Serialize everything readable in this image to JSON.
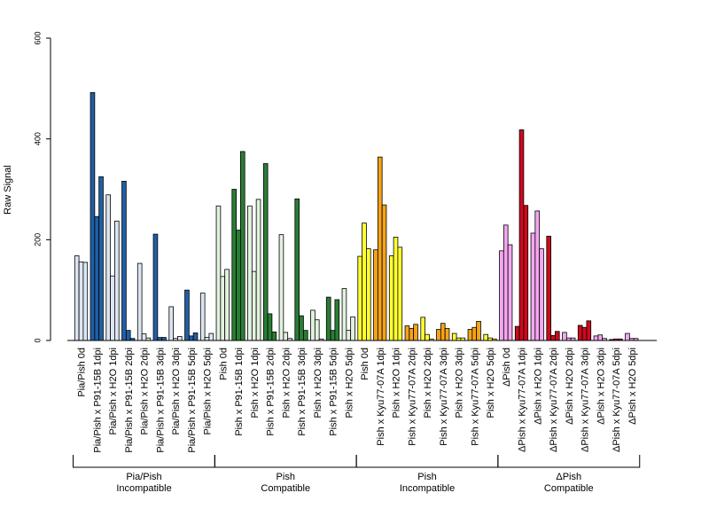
{
  "chart_data": {
    "type": "bar",
    "ylabel": "Raw Signal",
    "ylim": [
      0,
      600
    ],
    "yticks": [
      0,
      200,
      400,
      600
    ],
    "categories": [
      "Pia/Pish 0d",
      "Pia/Pish x P91-15B 1dpi",
      "Pia/Pish x H2O 1dpi",
      "Pia/Pish x P91-15B 2dpi",
      "Pia/Pish x H2O 2dpi",
      "Pia/Pish x P91-15B 3dpi",
      "Pia/Pish x H2O 3dpi",
      "Pia/Pish x P91-15B 5dpi",
      "Pia/Pish x H2O 5dpi",
      "Pish 0d",
      "Pish x P91-15B 1dpi",
      "Pish x H2O 1dpi",
      "Pish x P91-15B 2dpi",
      "Pish x H2O 2dpi",
      "Pish x P91-15B 3dpi",
      "Pish x H2O 3dpi",
      "Pish x P91-15B 5dpi",
      "Pish x H2O 5dpi",
      "Pish 0d",
      "Pish x Kyu77-07A 1dpi",
      "Pish x H2O 1dpi",
      "Pish x Kyu77-07A 2dpi",
      "Pish x H2O 2dpi",
      "Pish x Kyu77-07A 3dpi",
      "Pish x H2O 3dpi",
      "Pish x Kyu77-07A 5dpi",
      "Pish x H2O 5dpi",
      "ΔPish 0d",
      "ΔPish x Kyu77-07A 1dpi",
      "ΔPish x H2O 1dpi",
      "ΔPish x Kyu77-07A 2dpi",
      "ΔPish x H2O 2dpi",
      "ΔPish x Kyu77-07A 3dpi",
      "ΔPish x H2O 3dpi",
      "ΔPish x Kyu77-07A 5dpi",
      "ΔPish x H2O 5dpi"
    ],
    "replicate_values": [
      [
        168,
        156,
        155
      ],
      [
        492,
        246,
        325
      ],
      [
        289,
        128,
        237
      ],
      [
        316,
        20,
        4
      ],
      [
        153,
        13,
        5
      ],
      [
        211,
        6,
        6
      ],
      [
        67,
        4,
        8
      ],
      [
        100,
        9,
        15
      ],
      [
        94,
        6,
        14
      ],
      [
        267,
        127,
        141
      ],
      [
        300,
        219,
        375
      ],
      [
        267,
        137,
        280
      ],
      [
        351,
        53,
        17
      ],
      [
        210,
        16,
        4
      ],
      [
        281,
        49,
        20
      ],
      [
        60,
        41,
        3
      ],
      [
        86,
        20,
        81
      ],
      [
        103,
        20,
        47
      ],
      [
        167,
        233,
        182
      ],
      [
        180,
        364,
        269
      ],
      [
        168,
        205,
        185
      ],
      [
        29,
        24,
        32
      ],
      [
        46,
        12,
        3
      ],
      [
        22,
        34,
        24
      ],
      [
        14,
        5,
        5
      ],
      [
        22,
        26,
        38
      ],
      [
        12,
        5,
        3
      ],
      [
        178,
        229,
        190
      ],
      [
        28,
        418,
        268
      ],
      [
        213,
        257,
        182
      ],
      [
        207,
        10,
        18
      ],
      [
        16,
        5,
        5
      ],
      [
        30,
        26,
        39
      ],
      [
        9,
        11,
        4
      ],
      [
        2,
        3,
        3
      ],
      [
        14,
        4,
        4
      ]
    ],
    "bar_colors": [
      "#dce6f2",
      "#1f5fa6",
      "#dce6f2",
      "#1f5fa6",
      "#dce6f2",
      "#1f5fa6",
      "#dce6f2",
      "#1f5fa6",
      "#dce6f2",
      "#e2f2df",
      "#2a7d35",
      "#e2f2df",
      "#2a7d35",
      "#e2f2df",
      "#2a7d35",
      "#e2f2df",
      "#2a7d35",
      "#e2f2df",
      "#ffff33",
      "#f5a31a",
      "#ffff33",
      "#f5a31a",
      "#ffff33",
      "#f5a31a",
      "#ffff33",
      "#f5a31a",
      "#ffff33",
      "#f4a6f0",
      "#cc0a1e",
      "#f4a6f0",
      "#cc0a1e",
      "#f4a6f0",
      "#cc0a1e",
      "#f4a6f0",
      "#cc0a1e",
      "#f4a6f0"
    ],
    "groups": [
      {
        "line1": "Pia/Pish",
        "line2": "Incompatible",
        "start": 0,
        "end": 8
      },
      {
        "line1": "Pish",
        "line2": "Compatible",
        "start": 9,
        "end": 17
      },
      {
        "line1": "Pish",
        "line2": "Incompatible",
        "start": 18,
        "end": 26
      },
      {
        "line1": "ΔPish",
        "line2": "Compatible",
        "start": 27,
        "end": 35
      }
    ]
  }
}
